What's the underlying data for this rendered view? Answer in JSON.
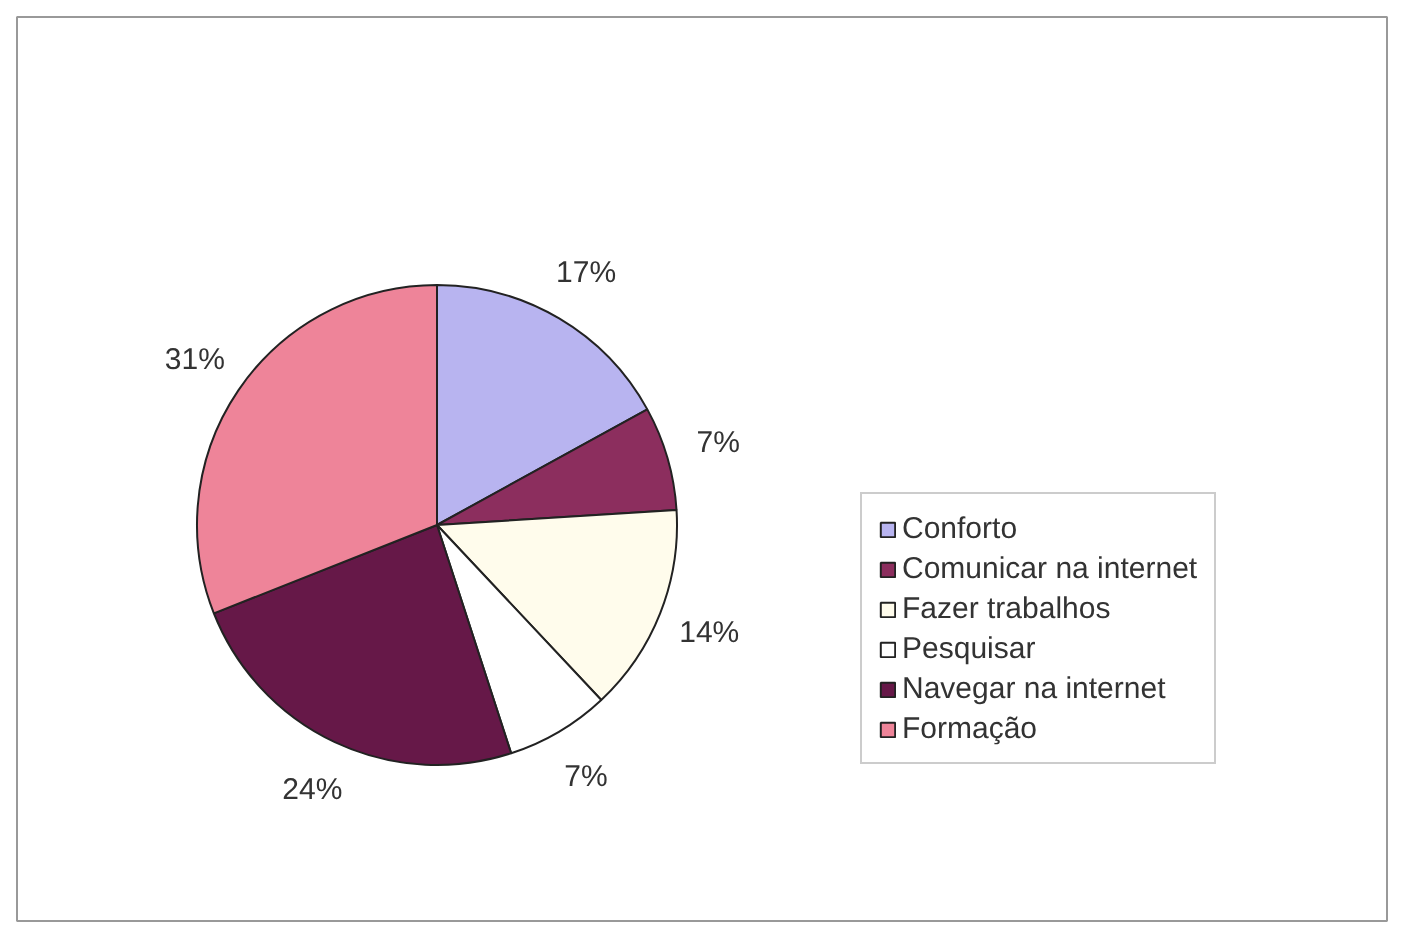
{
  "chart_data": {
    "type": "pie",
    "categories": [
      "Conforto",
      "Comunicar na internet",
      "Fazer trabalhos",
      "Pesquisar",
      "Navegar na internet",
      "Formação"
    ],
    "values": [
      17,
      7,
      14,
      7,
      24,
      31
    ],
    "value_labels": [
      "17%",
      "7%",
      "14%",
      "7%",
      "24%",
      "31%"
    ],
    "colors": [
      "#b8b4f0",
      "#8c2e5e",
      "#fffcec",
      "#ffffff",
      "#661848",
      "#ee8499"
    ],
    "legend": "right"
  }
}
